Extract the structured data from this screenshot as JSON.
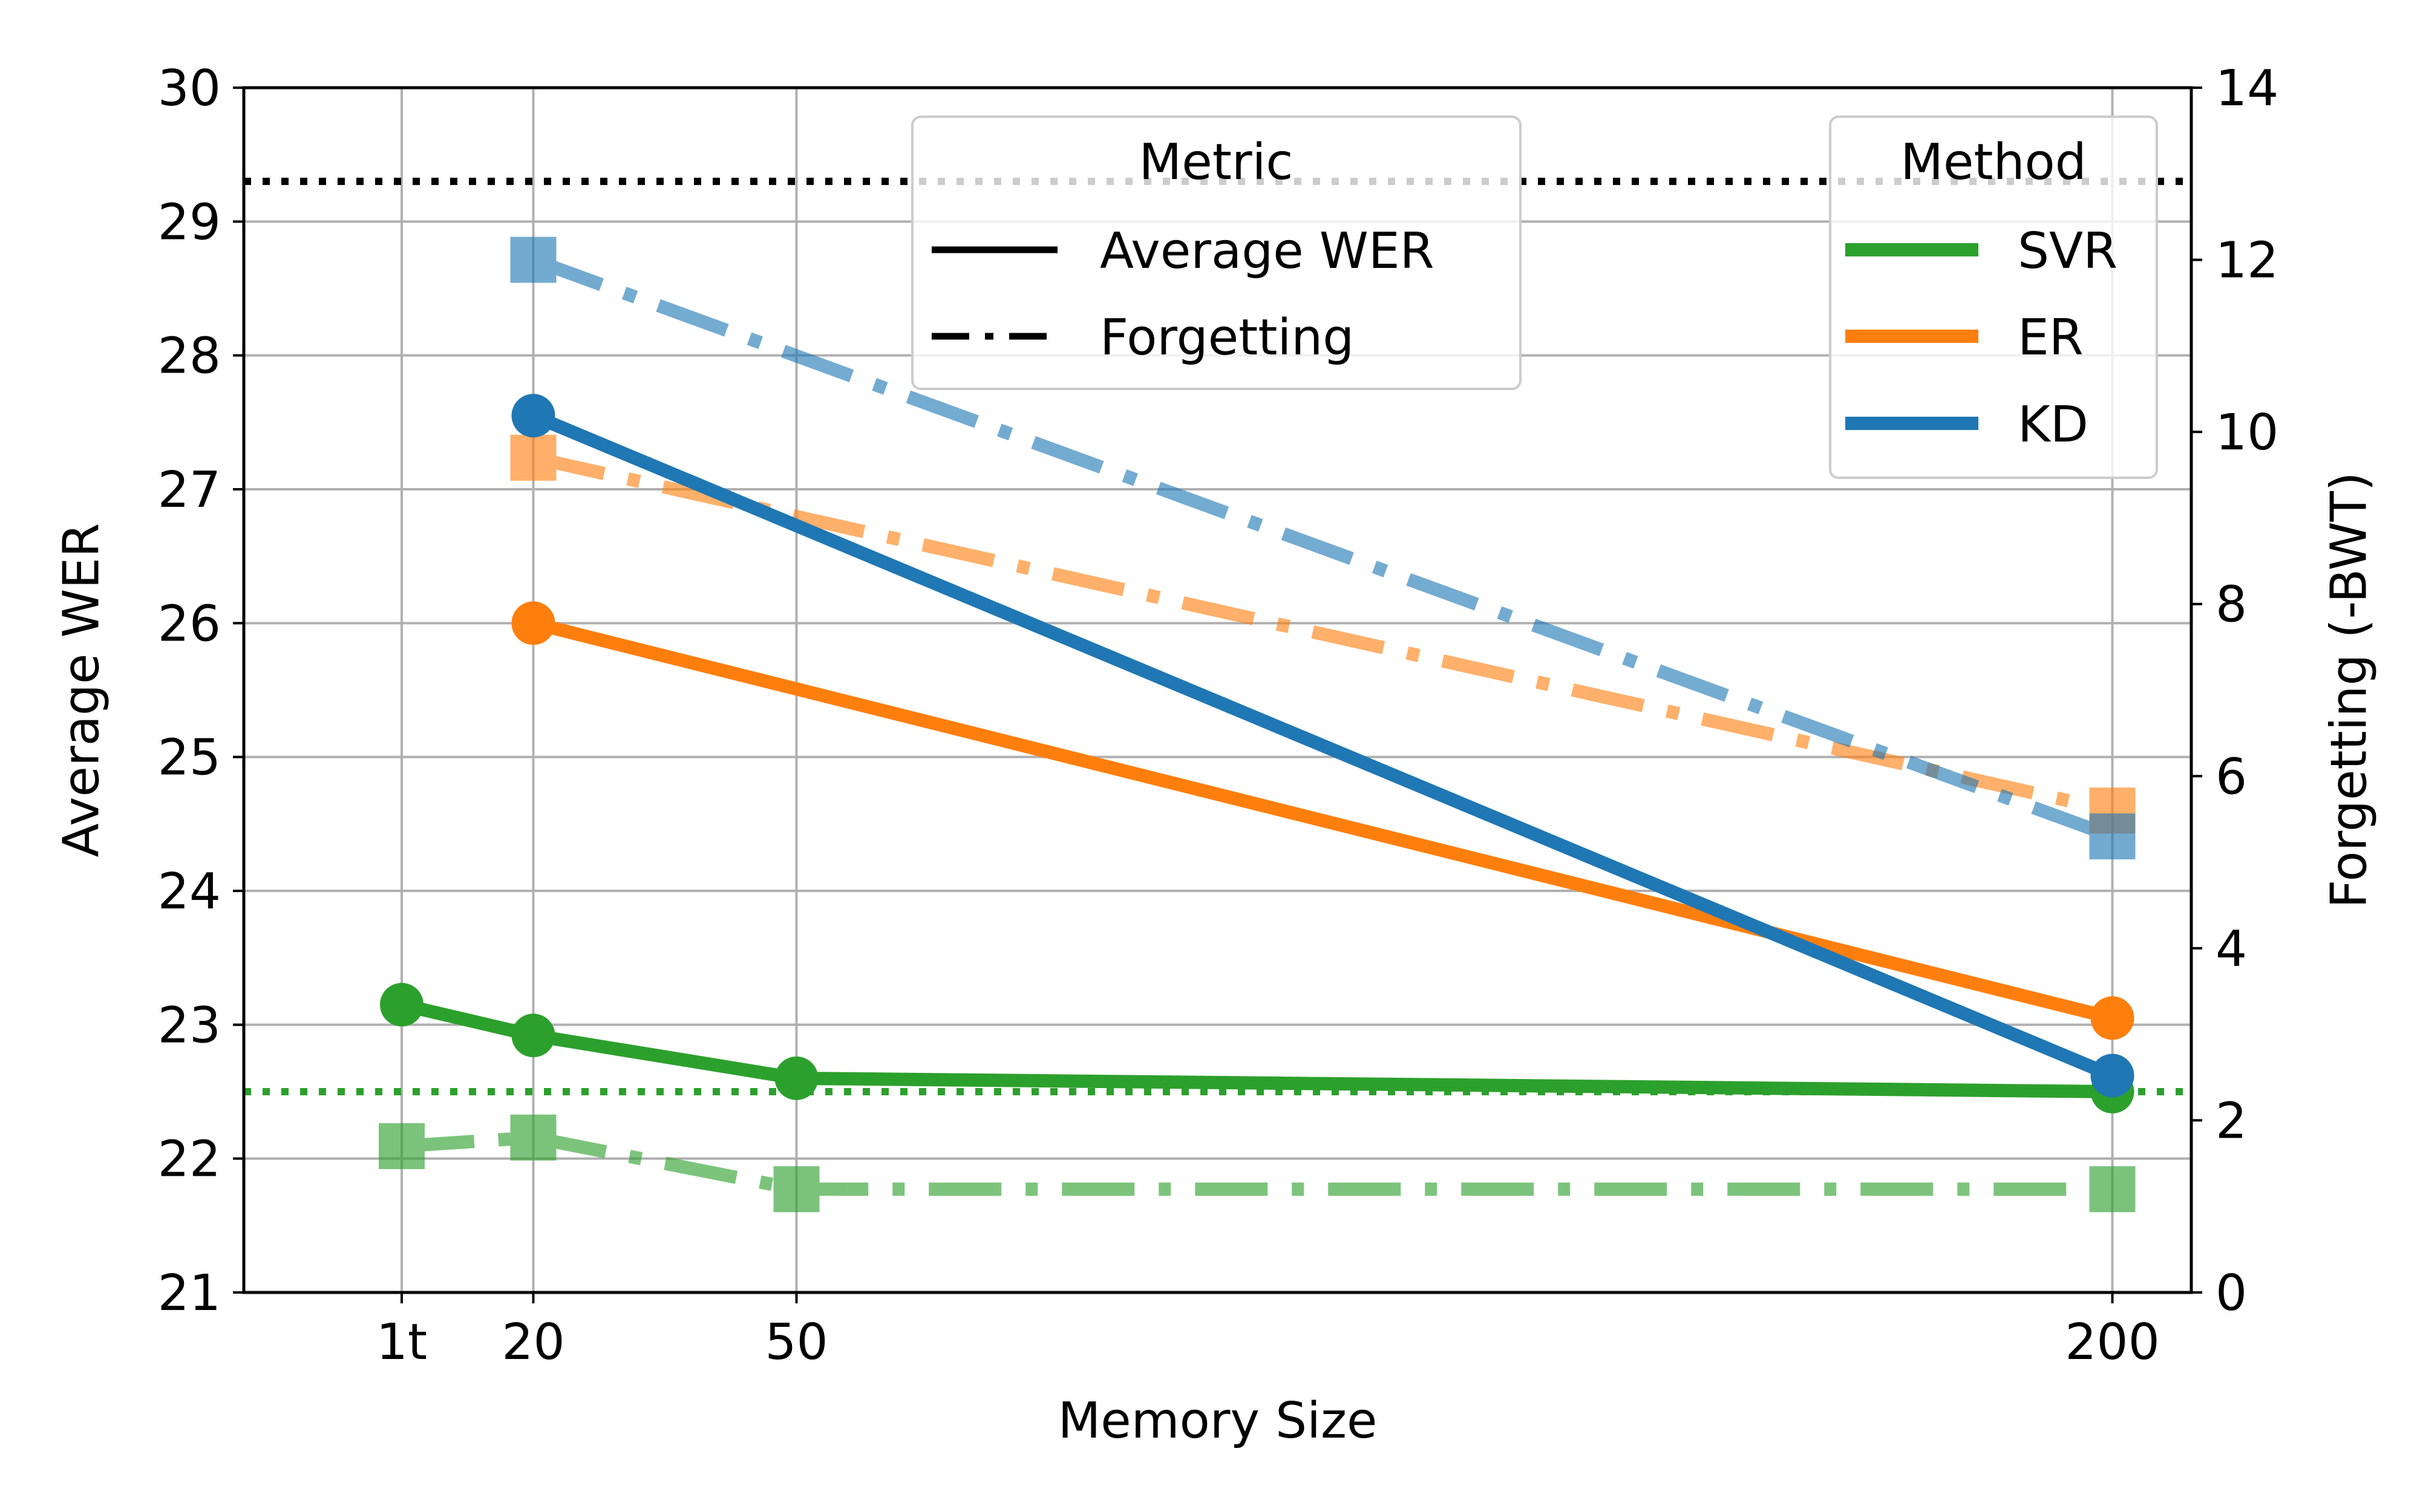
{
  "chart_data": {
    "type": "line",
    "xlabel": "Memory Size",
    "ylabel_left": "Average WER",
    "ylabel_right": "Forgetting (-BWT)",
    "x_ticks": [
      {
        "label": "1t",
        "value": 0.5
      },
      {
        "label": "20",
        "value": 1
      },
      {
        "label": "50",
        "value": 2
      },
      {
        "label": "200",
        "value": 7
      }
    ],
    "xlim": [
      -0.1,
      7.3
    ],
    "ylim_left": [
      21,
      30
    ],
    "ylim_right": [
      0,
      14
    ],
    "yticks_left": [
      "21",
      "22",
      "23",
      "24",
      "25",
      "26",
      "27",
      "28",
      "29",
      "30"
    ],
    "yticks_right": [
      "0",
      "2",
      "4",
      "6",
      "8",
      "10",
      "12",
      "14"
    ],
    "grid": true,
    "colors": {
      "SVR": "#2ca02c",
      "ER": "#ff7f0e",
      "KD": "#1f77b4",
      "reference": "#000000"
    },
    "series": [
      {
        "name": "SVR",
        "metric": "Average WER",
        "axis": "left",
        "x": [
          0.5,
          1,
          2,
          7
        ],
        "values": [
          23.15,
          22.92,
          22.6,
          22.5
        ]
      },
      {
        "name": "ER",
        "metric": "Average WER",
        "axis": "left",
        "x": [
          1,
          7
        ],
        "values": [
          26.0,
          23.05
        ]
      },
      {
        "name": "KD",
        "metric": "Average WER",
        "axis": "left",
        "x": [
          1,
          7
        ],
        "values": [
          27.55,
          22.62
        ]
      },
      {
        "name": "SVR",
        "metric": "Forgetting",
        "axis": "right",
        "x": [
          0.5,
          1,
          2,
          7
        ],
        "values": [
          1.7,
          1.8,
          1.2,
          1.2
        ]
      },
      {
        "name": "ER",
        "metric": "Forgetting",
        "axis": "right",
        "x": [
          1,
          7
        ],
        "values": [
          9.7,
          5.6
        ]
      },
      {
        "name": "KD",
        "metric": "Forgetting",
        "axis": "right",
        "x": [
          1,
          7
        ],
        "values": [
          12.0,
          5.3
        ]
      }
    ],
    "reference_lines": [
      {
        "name": "black-dotted-reference",
        "axis": "left",
        "value": 29.3,
        "color": "#000000"
      },
      {
        "name": "green-dotted-reference",
        "axis": "left",
        "value": 22.5,
        "color": "#2ca02c"
      }
    ],
    "legend_metric": {
      "title": "Metric",
      "entries": [
        {
          "label": "Average WER",
          "style": "solid"
        },
        {
          "label": "Forgetting",
          "style": "dashdot"
        }
      ]
    },
    "legend_method": {
      "title": "Method",
      "entries": [
        {
          "label": "SVR",
          "color": "#2ca02c"
        },
        {
          "label": "ER",
          "color": "#ff7f0e"
        },
        {
          "label": "KD",
          "color": "#1f77b4"
        }
      ]
    }
  }
}
